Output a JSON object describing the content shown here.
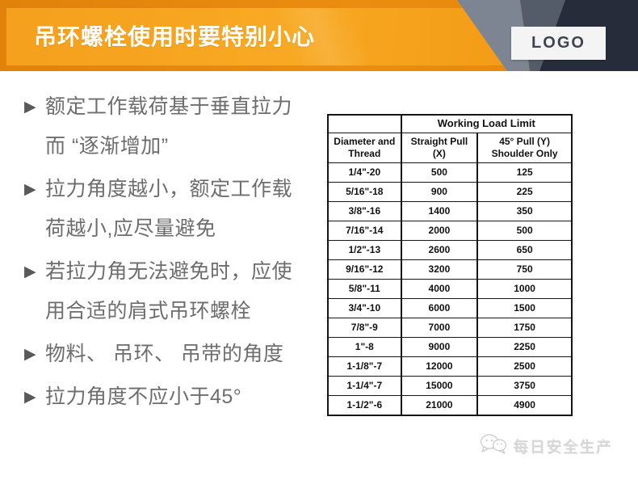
{
  "header": {
    "title": "吊环螺栓使用时要特别小心",
    "logo_label": "LOGO"
  },
  "bullet_marker": "▶",
  "bullets": [
    "额定工作载荷基于垂直拉力而 “逐渐增加”",
    "拉力角度越小，额定工作载荷越小,应尽量避免",
    "若拉力角无法避免时，应使用合适的肩式吊环螺栓",
    "物料、 吊环、 吊带的角度",
    "拉力角度不应小于45°"
  ],
  "table": {
    "span_header": "Working Load Limit",
    "columns": [
      "Diameter and Thread",
      "Straight Pull (X)",
      "45° Pull (Y) Shoulder Only"
    ],
    "rows": [
      [
        "1/4\"-20",
        "500",
        "125"
      ],
      [
        "5/16\"-18",
        "900",
        "225"
      ],
      [
        "3/8\"-16",
        "1400",
        "350"
      ],
      [
        "7/16\"-14",
        "2000",
        "500"
      ],
      [
        "1/2\"-13",
        "2600",
        "650"
      ],
      [
        "9/16\"-12",
        "3200",
        "750"
      ],
      [
        "5/8\"-11",
        "4000",
        "1000"
      ],
      [
        "3/4\"-10",
        "6000",
        "1500"
      ],
      [
        "7/8\"-9",
        "7000",
        "1750"
      ],
      [
        "1\"-8",
        "9000",
        "2250"
      ],
      [
        "1-1/8\"-7",
        "12000",
        "2500"
      ],
      [
        "1-1/4\"-7",
        "15000",
        "3750"
      ],
      [
        "1-1/2\"-6",
        "21000",
        "4900"
      ]
    ]
  },
  "watermark": {
    "icon": "wechat-icon",
    "label": "每日安全生产"
  },
  "colors": {
    "header_orange": "#F5A01E",
    "header_orange_dark": "#E1820B",
    "header_navy": "#262C39",
    "header_gray": "#7D8492",
    "header_slate": "#555C69",
    "title_text": "#FFFFFF",
    "bullet_text": "#6D6D6D",
    "table_border": "#151515",
    "watermark_gray": "#D9D9D9"
  }
}
